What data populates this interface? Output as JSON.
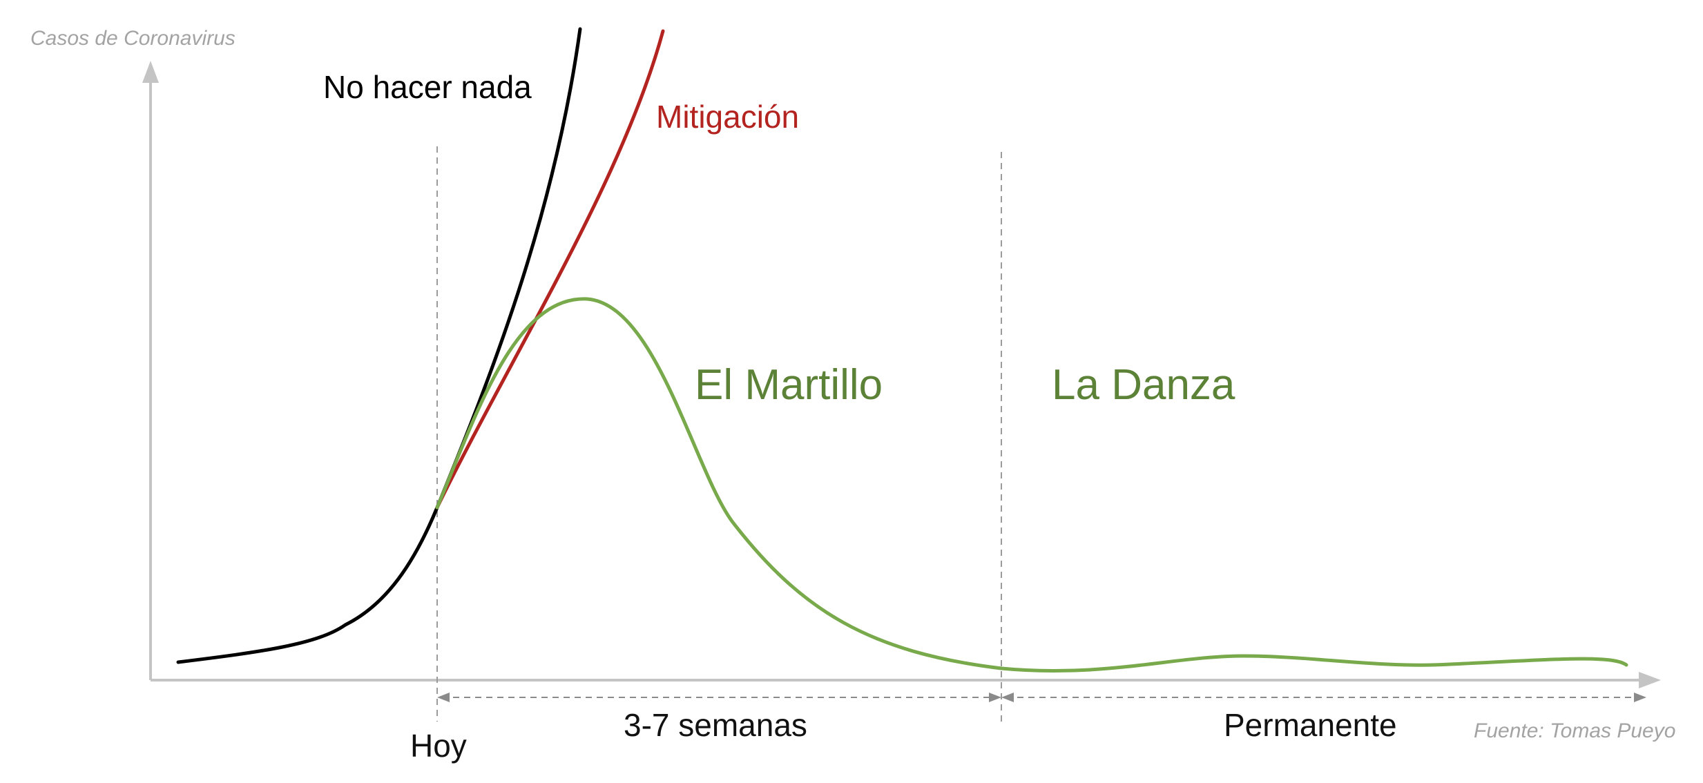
{
  "diagram": {
    "y_axis_label": "Casos de Coronavirus",
    "source": "Fuente: Tomas Pueyo",
    "curves": {
      "do_nothing": {
        "label": "No hacer nada",
        "color": "#000000"
      },
      "mitigation": {
        "label": "Mitigación",
        "color": "#b3231f"
      },
      "suppression": {
        "color": "#78a94b"
      }
    },
    "phases": {
      "hammer": {
        "label": "El Martillo",
        "color": "#5c8237"
      },
      "dance": {
        "label": "La Danza",
        "color": "#5c8237"
      }
    },
    "time_markers": {
      "today": "Hoy",
      "hammer_duration": "3-7 semanas",
      "dance_duration": "Permanente"
    }
  }
}
